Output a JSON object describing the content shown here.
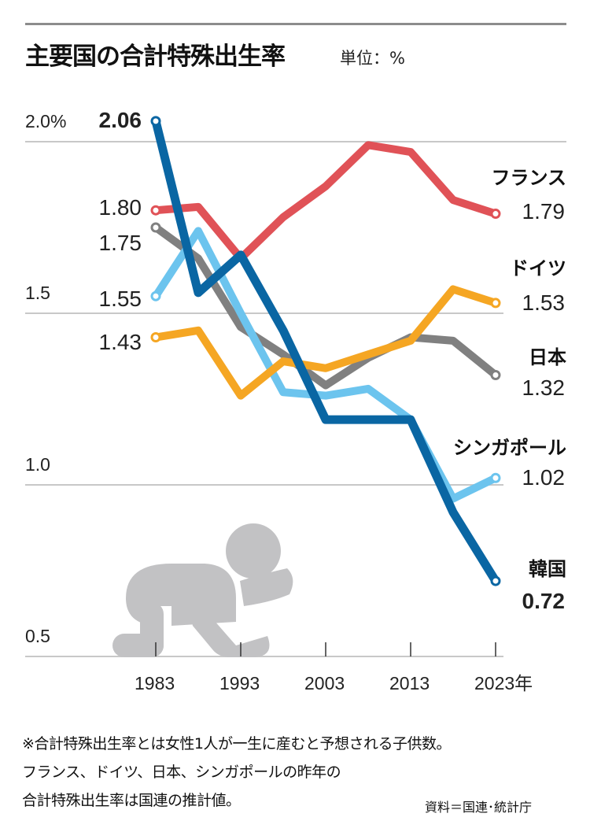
{
  "chart_data": {
    "type": "line",
    "title": "主要国の合計特殊出生率",
    "unit_label": "単位：%",
    "ylim": [
      0.5,
      2.0
    ],
    "xlim": [
      1983,
      2023
    ],
    "y_ticks": [
      {
        "value": 2.0,
        "label": "2.0%"
      },
      {
        "value": 1.5,
        "label": "1.5"
      },
      {
        "value": 1.0,
        "label": "1.0"
      },
      {
        "value": 0.5,
        "label": "0.5"
      }
    ],
    "x_ticks": [
      {
        "value": 1983,
        "label": "1983"
      },
      {
        "value": 1993,
        "label": "1993"
      },
      {
        "value": 2003,
        "label": "2003"
      },
      {
        "value": 2013,
        "label": "2013"
      },
      {
        "value": 2023,
        "label": "2023年"
      }
    ],
    "x": [
      1983,
      1988,
      1993,
      1998,
      2003,
      2008,
      2013,
      2018,
      2023
    ],
    "series": [
      {
        "name": "フランス",
        "color": "#e05257",
        "start_label": "1.80",
        "end_label": "1.79",
        "values": [
          1.8,
          1.81,
          1.66,
          1.78,
          1.87,
          1.99,
          1.97,
          1.83,
          1.79
        ]
      },
      {
        "name": "日本",
        "color": "#808080",
        "start_label": "1.75",
        "end_label": "1.32",
        "values": [
          1.75,
          1.66,
          1.46,
          1.38,
          1.29,
          1.37,
          1.43,
          1.42,
          1.32
        ]
      },
      {
        "name": "シンガポール",
        "color": "#6cc4ee",
        "start_label": "1.55",
        "end_label": "1.02",
        "values": [
          1.55,
          1.74,
          1.5,
          1.27,
          1.26,
          1.28,
          1.19,
          0.96,
          1.02
        ]
      },
      {
        "name": "ドイツ",
        "color": "#f5a623",
        "start_label": "1.43",
        "end_label": "1.53",
        "values": [
          1.43,
          1.45,
          1.26,
          1.36,
          1.34,
          1.38,
          1.42,
          1.57,
          1.53
        ]
      },
      {
        "name": "韓国",
        "color": "#0a66a3",
        "label_color": "#1a86c8",
        "start_label": "2.06",
        "end_label": "0.72",
        "values": [
          2.06,
          1.56,
          1.67,
          1.45,
          1.19,
          1.19,
          1.19,
          0.92,
          0.72
        ]
      }
    ]
  },
  "notes": [
    "※合計特殊出生率とは女性1人が一生に産むと予想される子供数。",
    "フランス、ドイツ、日本、シンガポールの昨年の",
    "合計特殊出生率は国連の推計値。"
  ],
  "source": "資料＝国連･統計庁",
  "illustration": "crawling-baby-icon"
}
